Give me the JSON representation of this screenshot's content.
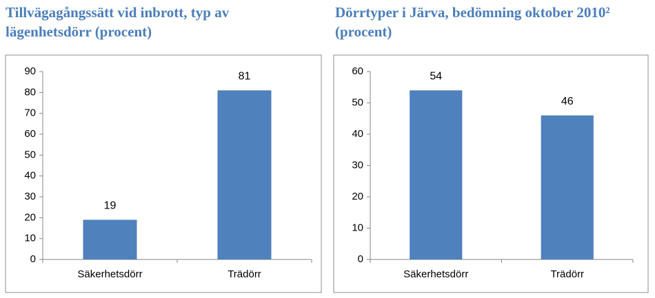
{
  "chart_data": [
    {
      "type": "bar",
      "title": "Tillvägagångssätt vid inbrott, typ av lägenhetsdörr (procent)",
      "categories": [
        "Säkerhetsdörr",
        "Trädörr"
      ],
      "values": [
        19,
        81
      ],
      "color": "#4f81bd",
      "ylim": [
        0,
        90
      ],
      "yticks": [
        0,
        10,
        20,
        30,
        40,
        50,
        60,
        70,
        80,
        90
      ]
    },
    {
      "type": "bar",
      "title": "Dörrtyper i Järva, bedömning oktober 2010² (procent)",
      "categories": [
        "Säkerhetsdörr",
        "Trädörr"
      ],
      "values": [
        54,
        46
      ],
      "color": "#4f81bd",
      "ylim": [
        0,
        60
      ],
      "yticks": [
        0,
        10,
        20,
        30,
        40,
        50,
        60
      ]
    }
  ]
}
